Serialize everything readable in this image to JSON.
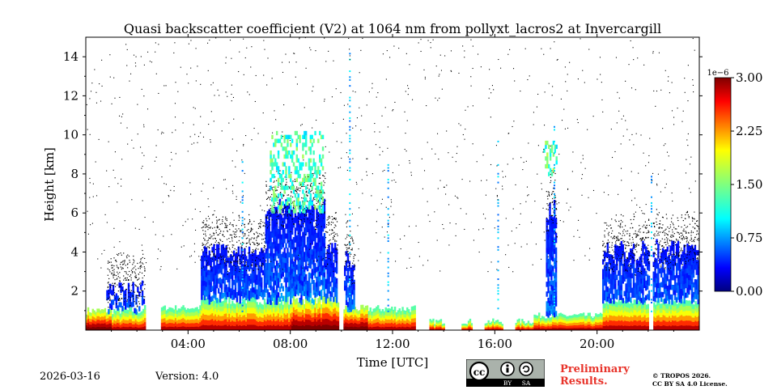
{
  "chart_data": {
    "type": "heatmap",
    "title": "Quasi backscatter coefficient (V2) at 1064 nm from pollyxt_lacros2 at Invercargill",
    "xlabel": "Time [UTC]",
    "ylabel": "Height [km]",
    "xlim": [
      0,
      24
    ],
    "ylim": [
      0,
      15
    ],
    "x_ticks": [
      4,
      8,
      12,
      16,
      20
    ],
    "x_tick_labels": [
      "04:00",
      "08:00",
      "12:00",
      "16:00",
      "20:00"
    ],
    "y_ticks": [
      2,
      4,
      6,
      8,
      10,
      12,
      14
    ],
    "y_tick_labels": [
      "2",
      "4",
      "6",
      "8",
      "10",
      "12",
      "14"
    ],
    "colorbar": {
      "exponent_label": "1e−6",
      "range": [
        0.0,
        3.0
      ],
      "ticks": [
        0.0,
        0.75,
        1.5,
        2.25,
        3.0
      ],
      "tick_labels": [
        "0.00",
        "0.75",
        "1.50",
        "2.25",
        "3.00"
      ],
      "colormap": "jet"
    },
    "features": [
      {
        "name": "boundary-layer",
        "t_start": 0.0,
        "t_end": 24.0,
        "top_km": 1.2,
        "peak_value": 3.0
      },
      {
        "name": "aerosol-layer-morning",
        "t_start": 4.5,
        "t_end": 9.8,
        "top_km": 6.5,
        "peak_value": 0.3
      },
      {
        "name": "cloud-0830",
        "t_start": 7.2,
        "t_end": 9.3,
        "base_km": 6.0,
        "top_km": 10.0,
        "peak_value": 1.5
      },
      {
        "name": "cloud-1830",
        "t_start": 17.9,
        "t_end": 18.4,
        "base_km": 7.9,
        "top_km": 9.5,
        "peak_value": 1.8
      },
      {
        "name": "aerosol-layer-evening",
        "t_start": 20.2,
        "t_end": 24.0,
        "top_km": 4.5,
        "peak_value": 0.3
      }
    ]
  },
  "footer": {
    "date": "2026-03-16",
    "version": "Version: 4.0",
    "preliminary_line1": "Preliminary",
    "preliminary_line2": "Results.",
    "copyright_line1": "© TROPOS 2026.",
    "copyright_line2": "CC BY SA 4.0 License.",
    "license_badge_by": "BY",
    "license_badge_sa": "SA"
  },
  "colors": {
    "jet": [
      "#00007f",
      "#0000ff",
      "#007fff",
      "#00ffff",
      "#7fff7f",
      "#ffff00",
      "#ff7f00",
      "#ff0000",
      "#7f0000"
    ],
    "preliminary": "#e8332a"
  }
}
